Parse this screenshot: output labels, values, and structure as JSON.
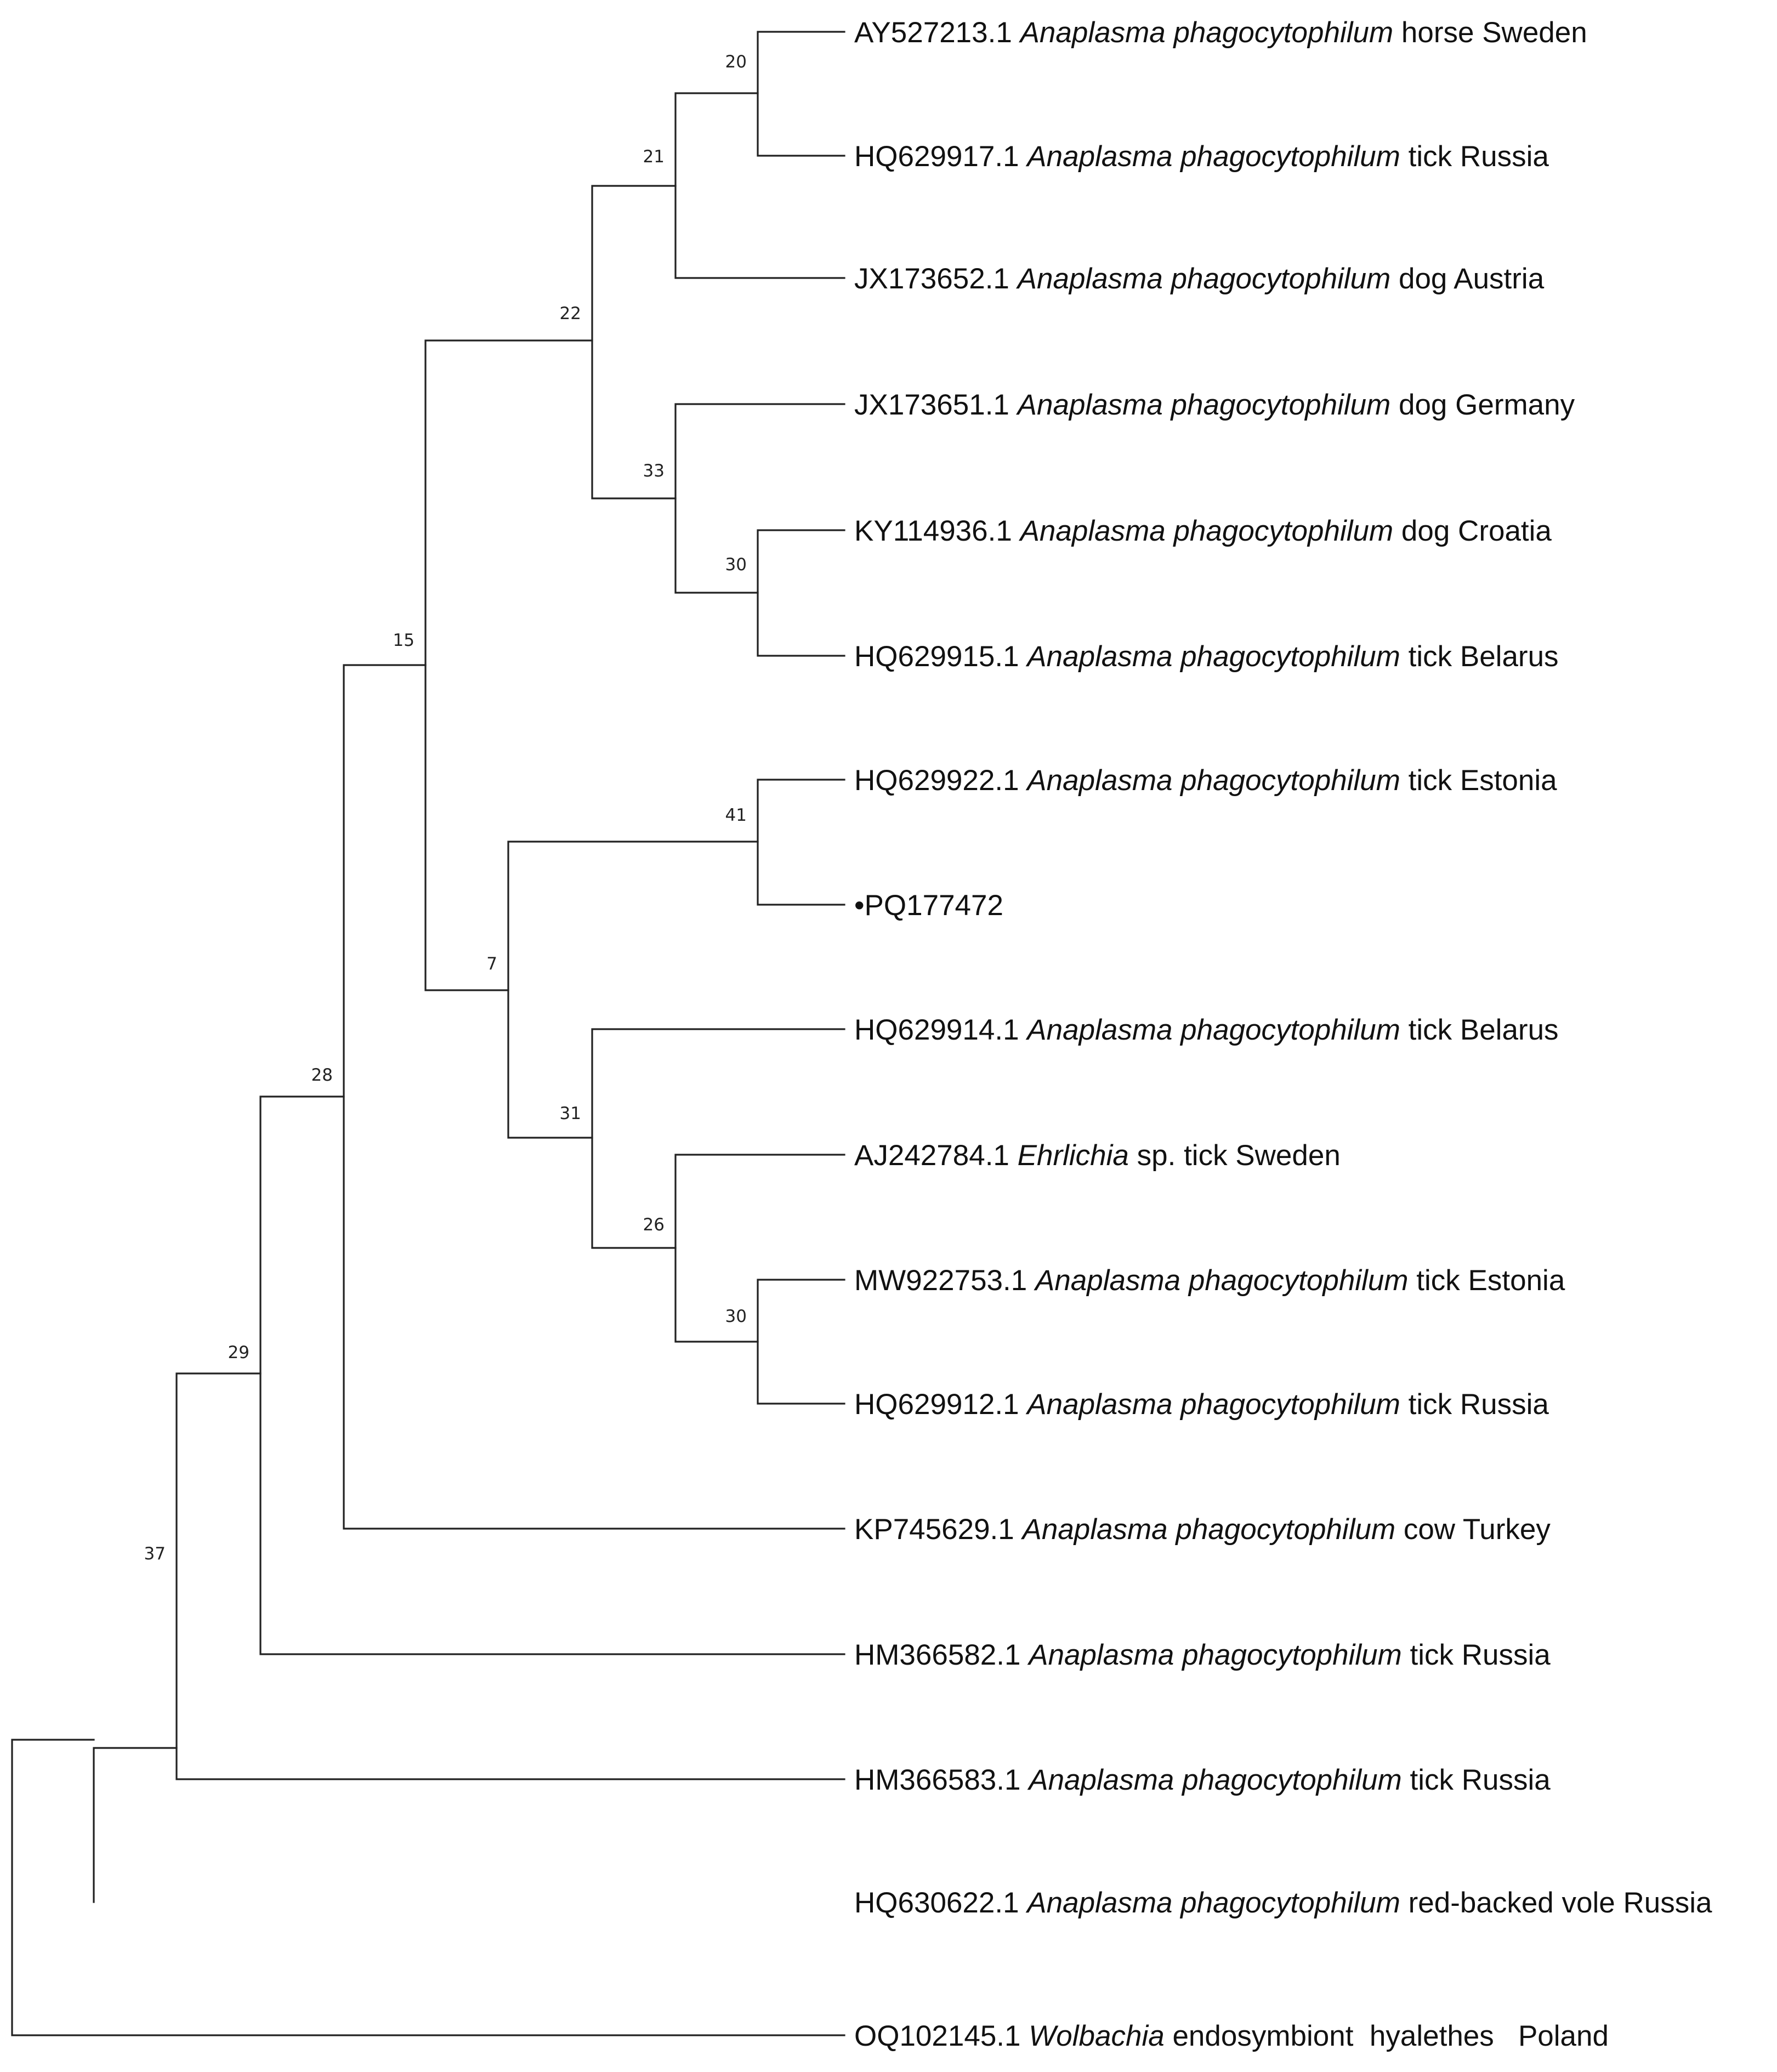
{
  "figure": {
    "type": "phylogenetic-tree"
  },
  "taxa": [
    {
      "accession": "AY527213.1",
      "species": "Anaplasma phagocytophilum",
      "host_country": "horse Sweden"
    },
    {
      "accession": "HQ629917.1",
      "species": "Anaplasma phagocytophilum",
      "host_country": "tick Russia"
    },
    {
      "accession": "JX173652.1",
      "species": "Anaplasma phagocytophilum",
      "host_country": "dog Austria"
    },
    {
      "accession": "JX173651.1",
      "species": "Anaplasma phagocytophilum",
      "host_country": "dog Germany"
    },
    {
      "accession": "KY114936.1",
      "species": "Anaplasma phagocytophilum",
      "host_country": "dog Croatia"
    },
    {
      "accession": "HQ629915.1",
      "species": "Anaplasma phagocytophilum",
      "host_country": "tick Belarus"
    },
    {
      "accession": "HQ629922.1",
      "species": "Anaplasma phagocytophilum",
      "host_country": "tick Estonia"
    },
    {
      "accession": "•PQ177472",
      "species": "",
      "host_country": ""
    },
    {
      "accession": "HQ629914.1",
      "species": "Anaplasma phagocytophilum",
      "host_country": "tick Belarus"
    },
    {
      "accession": "AJ242784.1",
      "species": "Ehrlichia",
      "host_country": "sp. tick Sweden"
    },
    {
      "accession": "MW922753.1",
      "species": "Anaplasma phagocytophilum",
      "host_country": "tick Estonia"
    },
    {
      "accession": "HQ629912.1",
      "species": "Anaplasma phagocytophilum",
      "host_country": "tick Russia"
    },
    {
      "accession": "KP745629.1",
      "species": "Anaplasma phagocytophilum",
      "host_country": "cow Turkey"
    },
    {
      "accession": "HM366582.1",
      "species": "Anaplasma phagocytophilum",
      "host_country": "tick Russia"
    },
    {
      "accession": "HM366583.1",
      "species": "Anaplasma phagocytophilum",
      "host_country": "tick Russia"
    },
    {
      "accession": "HQ630622.1",
      "species": "Anaplasma phagocytophilum",
      "host_country": "red-backed vole Russia"
    },
    {
      "accession": "OQ102145.1",
      "species": "Wolbachia",
      "host_country": "endosymbiont  hyalethes   Poland"
    }
  ],
  "bootstrap_values": [
    "20",
    "21",
    "22",
    "33",
    "30",
    "15",
    "41",
    "7",
    "31",
    "26",
    "30",
    "28",
    "29",
    "37"
  ]
}
